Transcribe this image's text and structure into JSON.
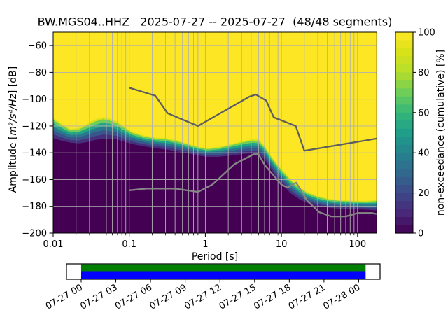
{
  "title": "BW.MGS04..HHZ   2025-07-27 -- 2025-07-27  (48/48 segments)",
  "chart_data": {
    "type": "heatmap",
    "subtype": "ppsd-cumulative-spectrogram",
    "title": "BW.MGS04..HHZ   2025-07-27 -- 2025-07-27  (48/48 segments)",
    "xlabel": "Period [s]",
    "ylabel_prefix": "Amplitude [",
    "ylabel_math": "m²/s⁴/Hz",
    "ylabel_suffix": "] [dB]",
    "colorbar_label": "non-exceedance (cumulative) [%]",
    "xscale": "log",
    "grid": true,
    "xlim": [
      0.01,
      179
    ],
    "ylim": [
      -200,
      -50
    ],
    "clim": [
      0,
      100
    ],
    "x_ticks": [
      0.01,
      0.1,
      1,
      10,
      100
    ],
    "x_tick_labels": [
      "0.01",
      "0.1",
      "1",
      "10",
      "100"
    ],
    "y_ticks": [
      -200,
      -180,
      -160,
      -140,
      -120,
      -100,
      -80,
      -60
    ],
    "y_tick_labels": [
      "−200",
      "−180",
      "−160",
      "−140",
      "−120",
      "−100",
      "−80",
      "−60"
    ],
    "colorbar_ticks": [
      0,
      20,
      40,
      60,
      80,
      100
    ],
    "colorbar_tick_labels": [
      "0",
      "20",
      "40",
      "60",
      "80",
      "100"
    ],
    "colorbar_steps": 25,
    "colormap": "viridis",
    "full_nonexceedance_color": "#fde725",
    "zero_nonexceedance_color": "#440154",
    "grid_color": "#b0b0b0",
    "distribution_band": {
      "description": "Transition band of cumulative PSD distribution: [period s, dB where non-exceedance reaches ~100%, dB where it reaches ~0%]",
      "points": [
        [
          0.01,
          -114.0,
          -129.0
        ],
        [
          0.013,
          -118.5,
          -131.0
        ],
        [
          0.017,
          -122.5,
          -132.5
        ],
        [
          0.022,
          -121.5,
          -133.0
        ],
        [
          0.028,
          -118.5,
          -132.0
        ],
        [
          0.035,
          -115.5,
          -130.5
        ],
        [
          0.045,
          -113.5,
          -129.5
        ],
        [
          0.055,
          -114.5,
          -129.5
        ],
        [
          0.07,
          -117.0,
          -130.0
        ],
        [
          0.09,
          -121.5,
          -132.0
        ],
        [
          0.11,
          -124.5,
          -133.5
        ],
        [
          0.15,
          -127.0,
          -135.0
        ],
        [
          0.22,
          -128.8,
          -136.5
        ],
        [
          0.3,
          -129.3,
          -137.5
        ],
        [
          0.42,
          -130.8,
          -139.0
        ],
        [
          0.6,
          -133.5,
          -140.5
        ],
        [
          0.8,
          -135.5,
          -142.0
        ],
        [
          1.05,
          -136.8,
          -143.0
        ],
        [
          1.5,
          -135.8,
          -143.0
        ],
        [
          2.2,
          -133.6,
          -142.0
        ],
        [
          3.0,
          -131.6,
          -141.0
        ],
        [
          4.2,
          -130.0,
          -140.2
        ],
        [
          5.0,
          -130.3,
          -141.0
        ],
        [
          6.0,
          -135.0,
          -145.0
        ],
        [
          7.0,
          -141.0,
          -151.0
        ],
        [
          8.5,
          -147.5,
          -158.0
        ],
        [
          10.5,
          -153.5,
          -164.0
        ],
        [
          13.0,
          -159.5,
          -170.0
        ],
        [
          17.0,
          -165.5,
          -174.5
        ],
        [
          22.0,
          -169.5,
          -177.5
        ],
        [
          30.0,
          -172.5,
          -179.8
        ],
        [
          42.0,
          -174.5,
          -181.0
        ],
        [
          60.0,
          -175.5,
          -181.8
        ],
        [
          90.0,
          -176.0,
          -182.0
        ],
        [
          130.0,
          -176.0,
          -182.5
        ],
        [
          179.0,
          -175.5,
          -183.0
        ]
      ],
      "band_fractions": [
        0,
        0.1,
        0.26,
        0.44,
        0.62,
        0.82,
        1
      ],
      "band_colors": [
        "#d8e219",
        "#6ece58",
        "#21a585",
        "#2a788e",
        "#39568c",
        "#46307e"
      ]
    },
    "noise_models": [
      {
        "name": "NHNM (Peterson new high noise model)",
        "color": "#5e5e5e",
        "points": [
          [
            0.1,
            -91.5
          ],
          [
            0.22,
            -97.4
          ],
          [
            0.32,
            -110.5
          ],
          [
            0.8,
            -120.0
          ],
          [
            3.8,
            -98.1
          ],
          [
            4.6,
            -96.5
          ],
          [
            6.3,
            -101.0
          ],
          [
            7.9,
            -113.5
          ],
          [
            15.4,
            -120.0
          ],
          [
            20.0,
            -138.5
          ],
          [
            179.0,
            -129.4
          ]
        ]
      },
      {
        "name": "NLNM (Peterson new low noise model)",
        "color": "#868686",
        "points": [
          [
            0.1,
            -168.0
          ],
          [
            0.17,
            -166.7
          ],
          [
            0.4,
            -166.7
          ],
          [
            0.8,
            -169.2
          ],
          [
            1.24,
            -163.7
          ],
          [
            2.4,
            -148.6
          ],
          [
            4.3,
            -141.1
          ],
          [
            5.0,
            -141.1
          ],
          [
            6.0,
            -149.0
          ],
          [
            10.0,
            -163.8
          ],
          [
            12.0,
            -166.0
          ],
          [
            15.6,
            -162.2
          ],
          [
            21.9,
            -175.9
          ],
          [
            31.6,
            -184.4
          ],
          [
            45.0,
            -187.5
          ],
          [
            70.0,
            -187.5
          ],
          [
            101.0,
            -185.0
          ],
          [
            154.0,
            -185.0
          ],
          [
            179.0,
            -185.8
          ]
        ]
      }
    ],
    "viridis_stops": [
      [
        0.0,
        "#440154"
      ],
      [
        0.1,
        "#482878"
      ],
      [
        0.2,
        "#3e4989"
      ],
      [
        0.3,
        "#31688e"
      ],
      [
        0.4,
        "#26828e"
      ],
      [
        0.5,
        "#1f9e89"
      ],
      [
        0.6,
        "#35b779"
      ],
      [
        0.7,
        "#6ece58"
      ],
      [
        0.8,
        "#b5de2b"
      ],
      [
        0.9,
        "#d8e219"
      ],
      [
        1.0,
        "#fde725"
      ]
    ]
  },
  "timeline": {
    "tick_labels": [
      "07-27 00",
      "07-27 03",
      "07-27 06",
      "07-27 09",
      "07-27 12",
      "07-27 15",
      "07-27 18",
      "07-27 21",
      "07-28 00"
    ],
    "tick_hours": [
      0,
      3,
      6,
      9,
      12,
      15,
      18,
      21,
      24
    ],
    "axis_hours": [
      -1.27,
      25.85
    ],
    "coverage_hours": [
      0,
      24.6
    ],
    "top_bar_color": "#008000",
    "bottom_bar_color": "#0000ff"
  }
}
